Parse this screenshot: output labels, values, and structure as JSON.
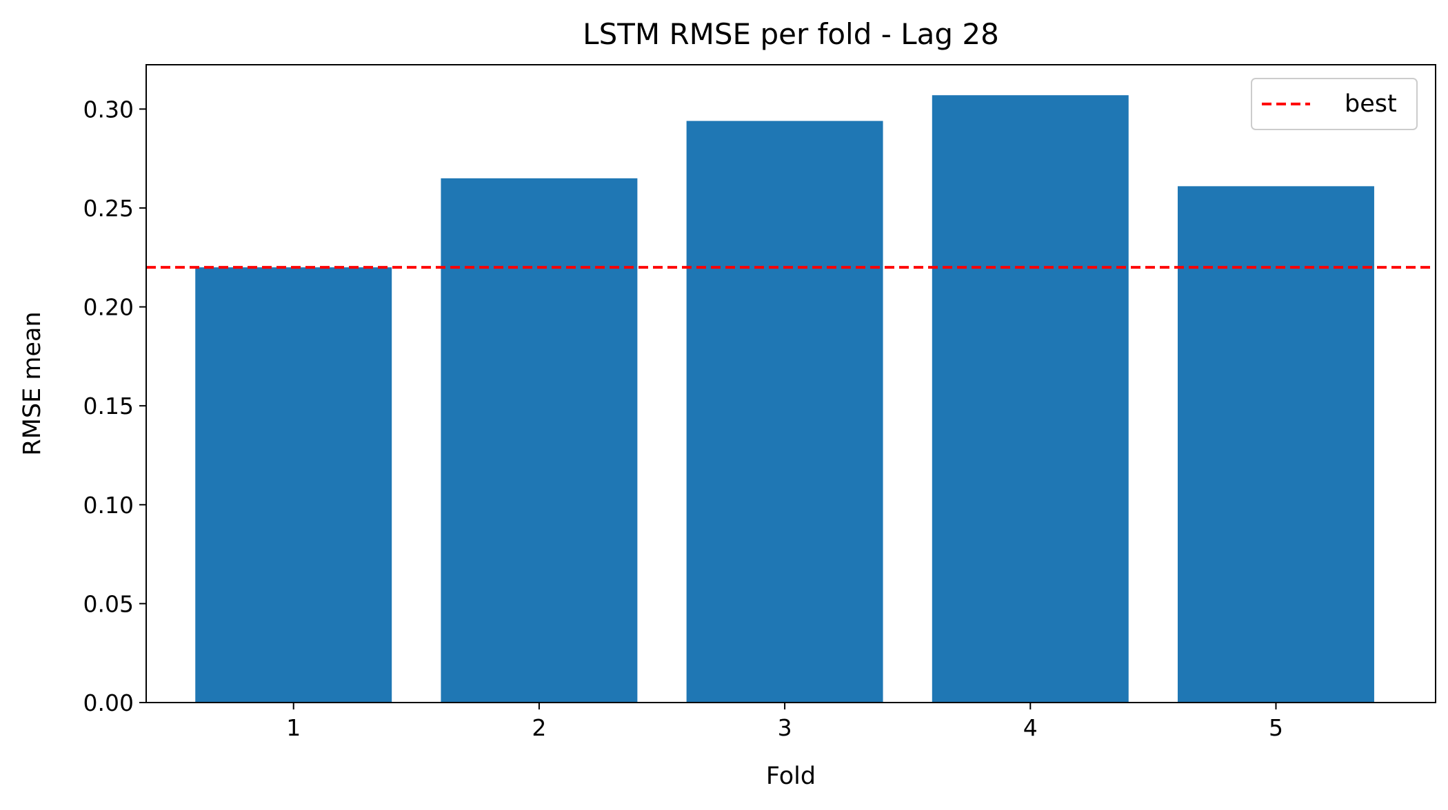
{
  "chart_data": {
    "type": "bar",
    "title": "LSTM RMSE per fold - Lag 28",
    "xlabel": "Fold",
    "ylabel": "RMSE mean",
    "categories": [
      "1",
      "2",
      "3",
      "4",
      "5"
    ],
    "values": [
      0.22,
      0.265,
      0.294,
      0.307,
      0.261
    ],
    "ylim": [
      0,
      0.3224
    ],
    "xlim": [
      0.4,
      5.65
    ],
    "yticks": [
      0.0,
      0.05,
      0.1,
      0.15,
      0.2,
      0.25,
      0.3
    ],
    "ytick_labels": [
      "0.00",
      "0.05",
      "0.10",
      "0.15",
      "0.20",
      "0.25",
      "0.30"
    ],
    "bar_color": "#1f77b4",
    "reference_line": {
      "name": "best",
      "value": 0.22,
      "color": "#ff0000",
      "style": "dashed"
    },
    "legend": {
      "position": "top-right",
      "entries": [
        "best"
      ]
    },
    "grid": false
  }
}
